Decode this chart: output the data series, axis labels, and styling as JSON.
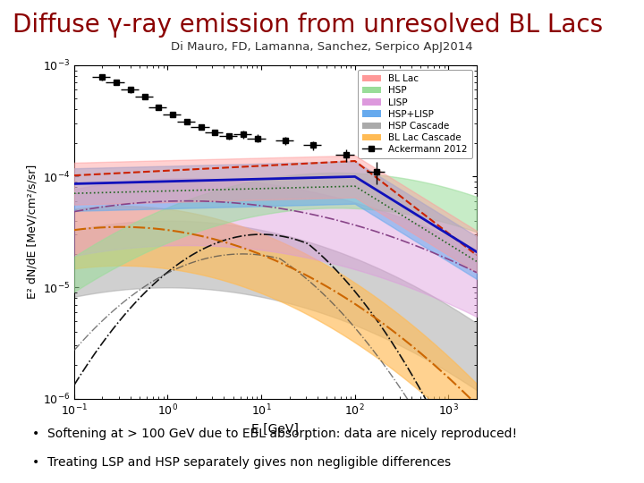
{
  "title": "Diffuse γ-ray emission from unresolved BL Lacs",
  "subtitle": "Di Mauro, FD, Lamanna, Sanchez, Serpico ApJ2014",
  "title_color": "#8B0000",
  "subtitle_color": "#333333",
  "bullet1": "Softening at > 100 GeV due to EBL absorption: data are nicely reproduced!",
  "bullet2": "Treating LSP and HSP separately gives non negligible differences",
  "xlabel": "E [GeV]",
  "ylabel": "E² dN/dE [MeV/cm²/s/sr]",
  "background_color": "#ffffff",
  "plot_bg_color": "#ffffff",
  "legend_entries": [
    "BL Lac",
    "HSP",
    "LISP",
    "HSP+LISP",
    "HSP Cascade",
    "BL Lac Cascade",
    "Ackermann 2012"
  ],
  "bl_lac_color": "#ff9999",
  "hsp_color": "#99dd99",
  "lisp_color": "#dd99dd",
  "hsp_lisp_color": "#66aaee",
  "hsp_cascade_color": "#aaaaaa",
  "bl_cascade_color": "#ffbb55",
  "line_bl_lac": "#1111bb",
  "line_hsp": "#228822",
  "line_lisp": "#882288",
  "line_cascade_bl": "#cc4400",
  "line_cascade_hsp": "#444444",
  "line_dotted": "#006688"
}
